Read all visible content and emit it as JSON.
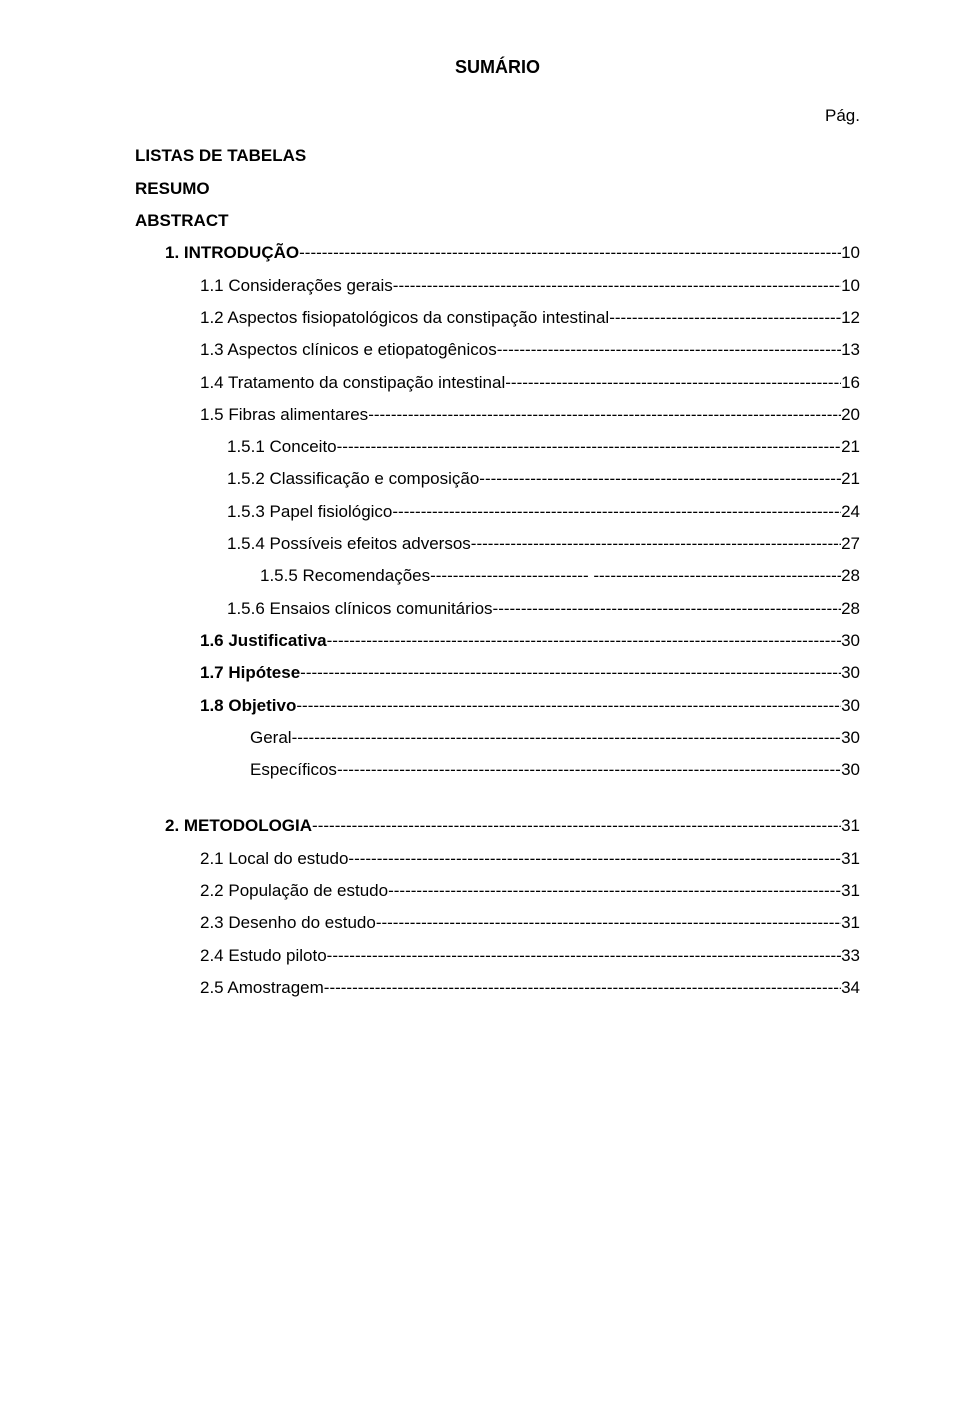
{
  "title": "SUMÁRIO",
  "page_label": "Pág.",
  "front_matter": [
    "LISTAS DE TABELAS",
    "RESUMO",
    "ABSTRACT"
  ],
  "leader_char": "-",
  "entries": [
    {
      "indent": "ind-0",
      "label": "1. INTRODUÇÃO",
      "bold": true,
      "page": "10",
      "no_space": true
    },
    {
      "indent": "ind-1",
      "label": "1.1 Considerações gerais",
      "bold": false,
      "page": "10",
      "no_space": false
    },
    {
      "indent": "ind-1",
      "label": "1.2 Aspectos fisiopatológicos da constipação intestinal",
      "bold": false,
      "page": "12",
      "no_space": true
    },
    {
      "indent": "ind-1",
      "label": "1.3 Aspectos clínicos e etiopatogênicos",
      "bold": false,
      "page": "13",
      "no_space": true
    },
    {
      "indent": "ind-1",
      "label": "1.4 Tratamento da constipação intestinal",
      "bold": false,
      "page": "16",
      "no_space": true
    },
    {
      "indent": "ind-1",
      "label": "1.5 Fibras alimentares",
      "bold": false,
      "page": "20",
      "no_space": true
    },
    {
      "indent": "ind-2",
      "label": "1.5.1  Conceito",
      "bold": false,
      "page": "21",
      "no_space": true
    },
    {
      "indent": "ind-2",
      "label": "1.5.2  Classificação e composição",
      "bold": false,
      "page": "21",
      "no_space": false
    },
    {
      "indent": "ind-2",
      "label": "1.5.3  Papel fisiológico",
      "bold": false,
      "page": "24",
      "no_space": false
    },
    {
      "indent": "ind-2",
      "label": "1.5.4  Possíveis efeitos adversos",
      "bold": false,
      "page": "27",
      "no_space": true
    },
    {
      "indent": "ind-3",
      "label": "1.5.5  Recomendações",
      "bold": false,
      "page": "28",
      "no_space": false,
      "gap_leader": true
    },
    {
      "indent": "ind-2",
      "label": "1.5.6  Ensaios clínicos comunitários",
      "bold": false,
      "page": "28",
      "no_space": true
    },
    {
      "indent": "ind-1",
      "label": "1.6 Justificativa",
      "bold": true,
      "page": "30",
      "no_space": false
    },
    {
      "indent": "ind-1",
      "label": "1.7  Hipótese",
      "bold": true,
      "page": "30",
      "no_space": false
    },
    {
      "indent": "ind-1",
      "label": "1.8  Objetivo",
      "bold": true,
      "page": " 30",
      "no_space": true
    },
    {
      "indent": "ind-geral",
      "label": "Geral",
      "bold": false,
      "page": "30",
      "no_space": true
    },
    {
      "indent": "ind-geral",
      "label": "Específicos",
      "bold": false,
      "page": "30",
      "no_space": true
    }
  ],
  "entries2": [
    {
      "indent": "ind-0",
      "label": "2. METODOLOGIA",
      "bold": true,
      "page": "31",
      "no_space": true
    },
    {
      "indent": "ind-1",
      "label": "2.1 Local do estudo",
      "bold": false,
      "page": "31",
      "no_space": true
    },
    {
      "indent": "ind-1",
      "label": "2.2 População de estudo",
      "bold": false,
      "page": "31",
      "no_space": true
    },
    {
      "indent": "ind-1",
      "label": " 2.3 Desenho do estudo",
      "bold": false,
      "page": "31",
      "no_space": true
    },
    {
      "indent": "ind-1",
      "label": "2.4 Estudo piloto",
      "bold": false,
      "page": "33",
      "no_space": true
    },
    {
      "indent": "ind-1",
      "label": "2.5 Amostragem",
      "bold": false,
      "page": "34",
      "no_space": true
    }
  ]
}
